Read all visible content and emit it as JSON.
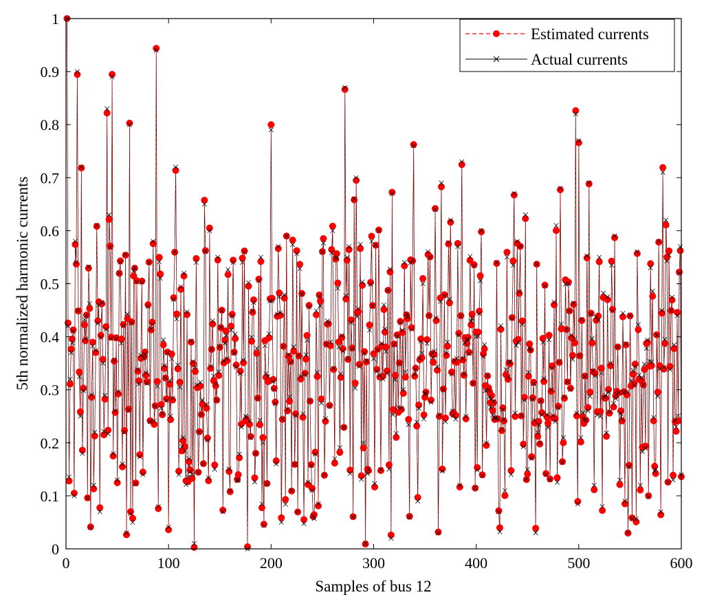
{
  "chart_data": {
    "type": "line",
    "title": "",
    "xlabel": "Samples of bus 12",
    "ylabel": "5th normalized harmonic currents",
    "xlim": [
      0,
      600
    ],
    "ylim": [
      0,
      1
    ],
    "xticks": [
      "0",
      "100",
      "200",
      "300",
      "400",
      "500",
      "600"
    ],
    "yticks": [
      "0",
      "0.1",
      "0.2",
      "0.3",
      "0.4",
      "0.5",
      "0.6",
      "0.7",
      "0.8",
      "0.9",
      "1"
    ],
    "grid": false,
    "legend_position": "top-right",
    "series": [
      {
        "name": "Estimated currents",
        "style": "dashed line with circle markers",
        "color": "#ff0000"
      },
      {
        "name": "Actual currents",
        "style": "solid line with x markers",
        "color": "#000000"
      }
    ],
    "seed": 12345,
    "n_samples": 600,
    "anchor_points": [
      [
        1,
        1.0
      ],
      [
        2,
        0.42
      ],
      [
        4,
        0.32
      ],
      [
        5,
        0.37
      ],
      [
        7,
        0.41
      ],
      [
        8,
        0.1
      ],
      [
        9,
        0.58
      ],
      [
        10,
        0.54
      ],
      [
        11,
        0.9
      ],
      [
        12,
        0.45
      ],
      [
        14,
        0.25
      ],
      [
        15,
        0.72
      ],
      [
        16,
        0.18
      ],
      [
        20,
        0.44
      ],
      [
        24,
        0.04
      ],
      [
        25,
        0.29
      ],
      [
        27,
        0.12
      ],
      [
        28,
        0.22
      ],
      [
        30,
        0.61
      ],
      [
        33,
        0.07
      ],
      [
        36,
        0.35
      ],
      [
        40,
        0.83
      ],
      [
        42,
        0.63
      ],
      [
        45,
        0.89
      ],
      [
        46,
        0.18
      ],
      [
        48,
        0.26
      ],
      [
        50,
        0.13
      ],
      [
        52,
        0.52
      ],
      [
        55,
        0.16
      ],
      [
        57,
        0.22
      ],
      [
        62,
        0.8
      ],
      [
        65,
        0.05
      ],
      [
        67,
        0.53
      ],
      [
        75,
        0.14
      ],
      [
        81,
        0.54
      ],
      [
        85,
        0.58
      ],
      [
        88,
        0.94
      ],
      [
        90,
        0.08
      ],
      [
        92,
        0.51
      ],
      [
        98,
        0.28
      ],
      [
        105,
        0.47
      ],
      [
        107,
        0.72
      ],
      [
        110,
        0.14
      ],
      [
        115,
        0.52
      ],
      [
        120,
        0.17
      ],
      [
        125,
        0.01
      ],
      [
        127,
        0.54
      ],
      [
        130,
        0.22
      ],
      [
        135,
        0.65
      ],
      [
        140,
        0.6
      ],
      [
        143,
        0.43
      ],
      [
        145,
        0.15
      ],
      [
        148,
        0.55
      ],
      [
        153,
        0.07
      ],
      [
        160,
        0.11
      ],
      [
        163,
        0.54
      ],
      [
        168,
        0.13
      ],
      [
        172,
        0.54
      ],
      [
        175,
        0.25
      ],
      [
        177,
        0.0
      ],
      [
        180,
        0.21
      ],
      [
        185,
        0.18
      ],
      [
        190,
        0.55
      ],
      [
        200,
        0.79
      ],
      [
        205,
        0.16
      ],
      [
        207,
        0.57
      ],
      [
        210,
        0.05
      ],
      [
        215,
        0.59
      ],
      [
        220,
        0.11
      ],
      [
        226,
        0.07
      ],
      [
        230,
        0.48
      ],
      [
        240,
        0.11
      ],
      [
        250,
        0.56
      ],
      [
        252,
        0.14
      ],
      [
        260,
        0.6
      ],
      [
        262,
        0.17
      ],
      [
        268,
        0.33
      ],
      [
        272,
        0.87
      ],
      [
        276,
        0.57
      ],
      [
        280,
        0.06
      ],
      [
        281,
        0.66
      ],
      [
        283,
        0.7
      ],
      [
        290,
        0.2
      ],
      [
        292,
        0.01
      ],
      [
        295,
        0.15
      ],
      [
        298,
        0.58
      ],
      [
        305,
        0.6
      ],
      [
        310,
        0.46
      ],
      [
        315,
        0.15
      ],
      [
        317,
        0.02
      ],
      [
        318,
        0.67
      ],
      [
        325,
        0.35
      ],
      [
        330,
        0.54
      ],
      [
        335,
        0.06
      ],
      [
        339,
        0.76
      ],
      [
        343,
        0.09
      ],
      [
        348,
        0.5
      ],
      [
        355,
        0.55
      ],
      [
        360,
        0.64
      ],
      [
        363,
        0.03
      ],
      [
        366,
        0.69
      ],
      [
        370,
        0.24
      ],
      [
        375,
        0.62
      ],
      [
        382,
        0.57
      ],
      [
        384,
        0.12
      ],
      [
        386,
        0.73
      ],
      [
        390,
        0.25
      ],
      [
        400,
        0.4
      ],
      [
        405,
        0.6
      ],
      [
        410,
        0.2
      ],
      [
        420,
        0.54
      ],
      [
        422,
        0.07
      ],
      [
        428,
        0.11
      ],
      [
        430,
        0.55
      ],
      [
        437,
        0.67
      ],
      [
        440,
        0.58
      ],
      [
        448,
        0.63
      ],
      [
        450,
        0.15
      ],
      [
        458,
        0.03
      ],
      [
        462,
        0.2
      ],
      [
        468,
        0.14
      ],
      [
        472,
        0.13
      ],
      [
        478,
        0.61
      ],
      [
        482,
        0.68
      ],
      [
        485,
        0.21
      ],
      [
        490,
        0.5
      ],
      [
        497,
        0.82
      ],
      [
        500,
        0.77
      ],
      [
        502,
        0.21
      ],
      [
        510,
        0.69
      ],
      [
        515,
        0.12
      ],
      [
        520,
        0.55
      ],
      [
        523,
        0.08
      ],
      [
        535,
        0.59
      ],
      [
        540,
        0.13
      ],
      [
        545,
        0.09
      ],
      [
        550,
        0.44
      ],
      [
        557,
        0.56
      ],
      [
        560,
        0.12
      ],
      [
        565,
        0.19
      ],
      [
        570,
        0.53
      ],
      [
        575,
        0.15
      ],
      [
        578,
        0.58
      ],
      [
        580,
        0.07
      ],
      [
        582,
        0.71
      ],
      [
        585,
        0.62
      ],
      [
        590,
        0.45
      ],
      [
        592,
        0.13
      ],
      [
        595,
        0.23
      ],
      [
        598,
        0.52
      ],
      [
        599,
        0.57
      ],
      [
        600,
        0.14
      ]
    ]
  }
}
